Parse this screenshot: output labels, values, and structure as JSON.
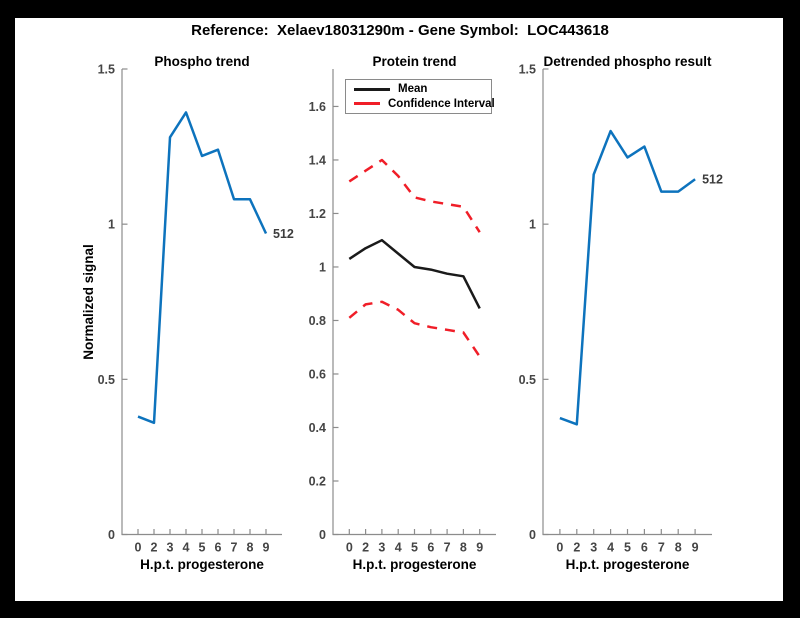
{
  "figure_title": "Reference:  Xelaev18031290m - Gene Symbol:  LOC443618",
  "colors": {
    "line_blue": "#0d73bd",
    "line_red": "#f01e28",
    "line_black": "#1a1a1a",
    "axis": "#8c8c8c",
    "tick_label": "#454545",
    "end_label": "#3d3d3d",
    "background": "#ffffff",
    "frame": "#000000"
  },
  "legend": {
    "items": [
      {
        "label": "Mean",
        "color": "#1a1a1a",
        "style": "solid"
      },
      {
        "label": "Confidence Interval",
        "color": "#f01e28",
        "style": "dashed"
      }
    ]
  },
  "chart_data": [
    {
      "type": "line",
      "title": "Phospho trend",
      "xlabel": "H.p.t. progesterone",
      "ylabel": "Normalized signal",
      "categories": [
        "0",
        "2",
        "3",
        "4",
        "5",
        "6",
        "7",
        "8",
        "9"
      ],
      "ylim": [
        0,
        1.5
      ],
      "yticks": [
        {
          "v": 0,
          "label": "0"
        },
        {
          "v": 0.5,
          "label": "0.5"
        },
        {
          "v": 1,
          "label": "1"
        },
        {
          "v": 1.5,
          "label": "1.5"
        }
      ],
      "series": [
        {
          "name": "512",
          "color": "#0d73bd",
          "style": "solid",
          "width": 2.5,
          "end_label": "512",
          "values": [
            0.38,
            0.36,
            1.28,
            1.36,
            1.22,
            1.24,
            1.08,
            1.08,
            0.97
          ]
        }
      ],
      "legend_position": null,
      "grid": false
    },
    {
      "type": "line",
      "title": "Protein trend",
      "xlabel": "H.p.t. progesterone",
      "ylabel": "",
      "categories": [
        "0",
        "2",
        "3",
        "4",
        "5",
        "6",
        "7",
        "8",
        "9"
      ],
      "ylim": [
        0,
        1.74
      ],
      "yticks": [
        {
          "v": 0,
          "label": "0"
        },
        {
          "v": 0.2,
          "label": "0.2"
        },
        {
          "v": 0.4,
          "label": "0.4"
        },
        {
          "v": 0.6,
          "label": "0.6"
        },
        {
          "v": 0.8,
          "label": "0.8"
        },
        {
          "v": 1,
          "label": "1"
        },
        {
          "v": 1.2,
          "label": "1.2"
        },
        {
          "v": 1.4,
          "label": "1.4"
        },
        {
          "v": 1.6,
          "label": "1.6"
        }
      ],
      "series": [
        {
          "name": "Mean",
          "color": "#1a1a1a",
          "style": "solid",
          "width": 2.5,
          "end_label": null,
          "values": [
            1.03,
            1.07,
            1.1,
            1.05,
            1.0,
            0.99,
            0.975,
            0.965,
            0.845
          ]
        },
        {
          "name": "Confidence Interval upper",
          "color": "#f01e28",
          "style": "dashed",
          "width": 2.5,
          "end_label": null,
          "values": [
            1.32,
            1.36,
            1.4,
            1.34,
            1.26,
            1.245,
            1.235,
            1.225,
            1.13
          ]
        },
        {
          "name": "Confidence Interval lower",
          "color": "#f01e28",
          "style": "dashed",
          "width": 2.5,
          "end_label": null,
          "values": [
            0.81,
            0.86,
            0.87,
            0.84,
            0.79,
            0.775,
            0.765,
            0.755,
            0.665
          ]
        }
      ],
      "legend_position": "top-left",
      "grid": false
    },
    {
      "type": "line",
      "title": "Detrended phospho result",
      "xlabel": "H.p.t. progesterone",
      "ylabel": "",
      "categories": [
        "0",
        "2",
        "3",
        "4",
        "5",
        "6",
        "7",
        "8",
        "9"
      ],
      "ylim": [
        0,
        1.5
      ],
      "yticks": [
        {
          "v": 0,
          "label": "0"
        },
        {
          "v": 0.5,
          "label": "0.5"
        },
        {
          "v": 1,
          "label": "1"
        },
        {
          "v": 1.5,
          "label": "1.5"
        }
      ],
      "series": [
        {
          "name": "512",
          "color": "#0d73bd",
          "style": "solid",
          "width": 2.5,
          "end_label": "512",
          "values": [
            0.375,
            0.355,
            1.16,
            1.3,
            1.215,
            1.25,
            1.105,
            1.105,
            1.145
          ]
        }
      ],
      "legend_position": null,
      "grid": false
    }
  ]
}
